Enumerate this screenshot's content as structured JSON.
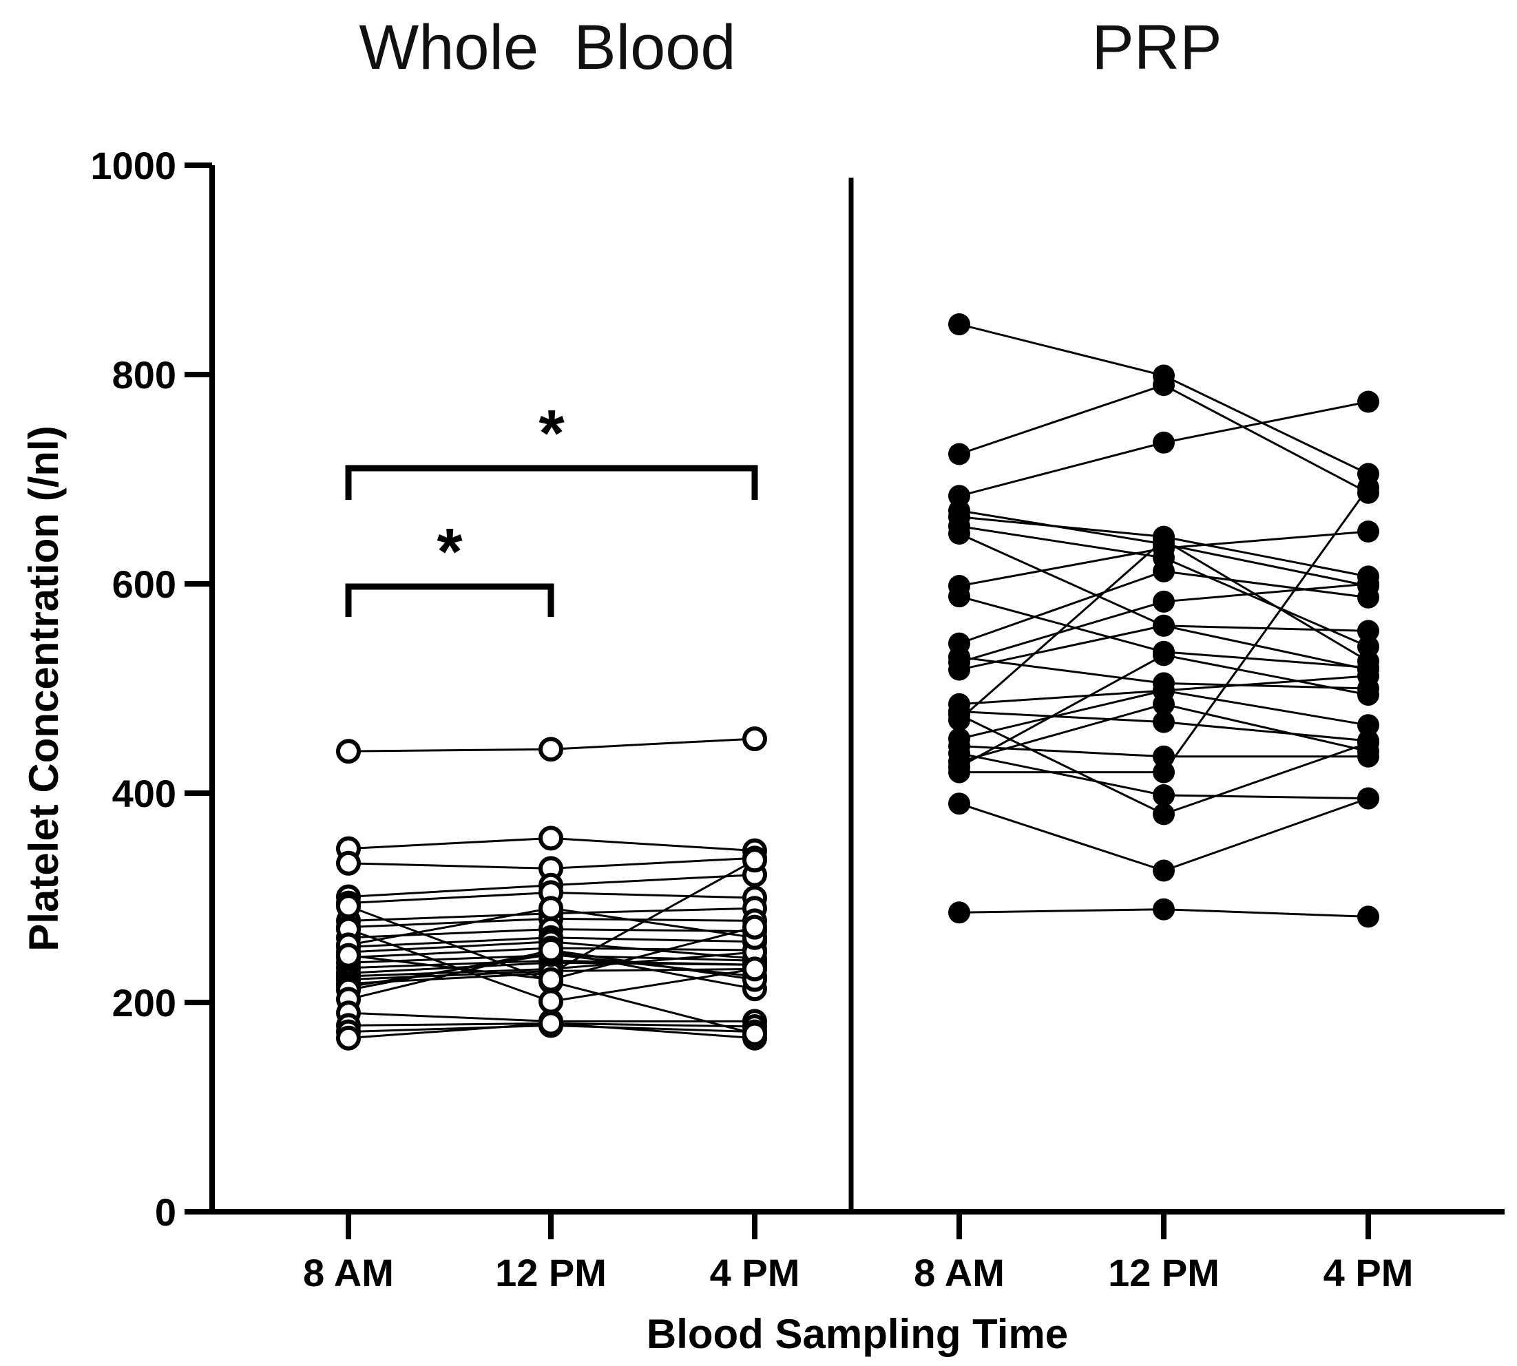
{
  "chart_data": {
    "type": "line",
    "ylabel": "Platelet Concentration (/nl)",
    "xlabel": "Blood Sampling Time",
    "ylim": [
      0,
      1000
    ],
    "yticks": [
      0,
      200,
      400,
      600,
      800,
      1000
    ],
    "ytick_labels": [
      "0",
      "200",
      "400",
      "600",
      "800",
      "1000"
    ],
    "panels": [
      {
        "title": "Whole  Blood",
        "marker": "open-circle",
        "categories": [
          "8 AM",
          "12 PM",
          "4 PM"
        ],
        "subjects": [
          [
            440,
            442,
            452
          ],
          [
            347,
            357,
            345
          ],
          [
            333,
            328,
            338
          ],
          [
            301,
            312,
            322
          ],
          [
            295,
            305,
            300
          ],
          [
            278,
            285,
            290
          ],
          [
            272,
            280,
            278
          ],
          [
            262,
            270,
            268
          ],
          [
            253,
            262,
            258
          ],
          [
            248,
            258,
            242
          ],
          [
            243,
            252,
            250
          ],
          [
            238,
            245,
            240
          ],
          [
            233,
            240,
            236
          ],
          [
            228,
            238,
            236
          ],
          [
            225,
            232,
            248
          ],
          [
            222,
            230,
            232
          ],
          [
            218,
            228,
            336
          ],
          [
            215,
            246,
            225
          ],
          [
            212,
            249,
            213
          ],
          [
            203,
            250,
            222
          ],
          [
            190,
            182,
            182
          ],
          [
            178,
            180,
            177
          ],
          [
            172,
            178,
            172
          ],
          [
            166,
            180,
            166
          ],
          [
            292,
            220,
            170
          ],
          [
            270,
            201,
            232
          ],
          [
            255,
            290,
            262
          ],
          [
            245,
            222,
            272
          ]
        ],
        "significance": [
          {
            "from": "8 AM",
            "to": "12 PM",
            "label": "*"
          },
          {
            "from": "8 AM",
            "to": "4 PM",
            "label": "*"
          }
        ]
      },
      {
        "title": "PRP",
        "marker": "filled-circle",
        "categories": [
          "8 AM",
          "12 PM",
          "4 PM"
        ],
        "subjects": [
          [
            848,
            799,
            705
          ],
          [
            724,
            790,
            687
          ],
          [
            684,
            735,
            774
          ],
          [
            670,
            638,
            598
          ],
          [
            664,
            645,
            607
          ],
          [
            655,
            625,
            540
          ],
          [
            648,
            560,
            518
          ],
          [
            598,
            634,
            650
          ],
          [
            588,
            535,
            520
          ],
          [
            543,
            612,
            587
          ],
          [
            530,
            505,
            500
          ],
          [
            525,
            583,
            600
          ],
          [
            518,
            560,
            555
          ],
          [
            485,
            498,
            512
          ],
          [
            478,
            468,
            450
          ],
          [
            470,
            642,
            526
          ],
          [
            452,
            498,
            465
          ],
          [
            445,
            435,
            435
          ],
          [
            438,
            398,
            395
          ],
          [
            430,
            485,
            440
          ],
          [
            425,
            532,
            494
          ],
          [
            420,
            420,
            692
          ],
          [
            390,
            326,
            395
          ],
          [
            286,
            289,
            282
          ],
          [
            475,
            380,
            448
          ]
        ],
        "significance": []
      }
    ]
  }
}
